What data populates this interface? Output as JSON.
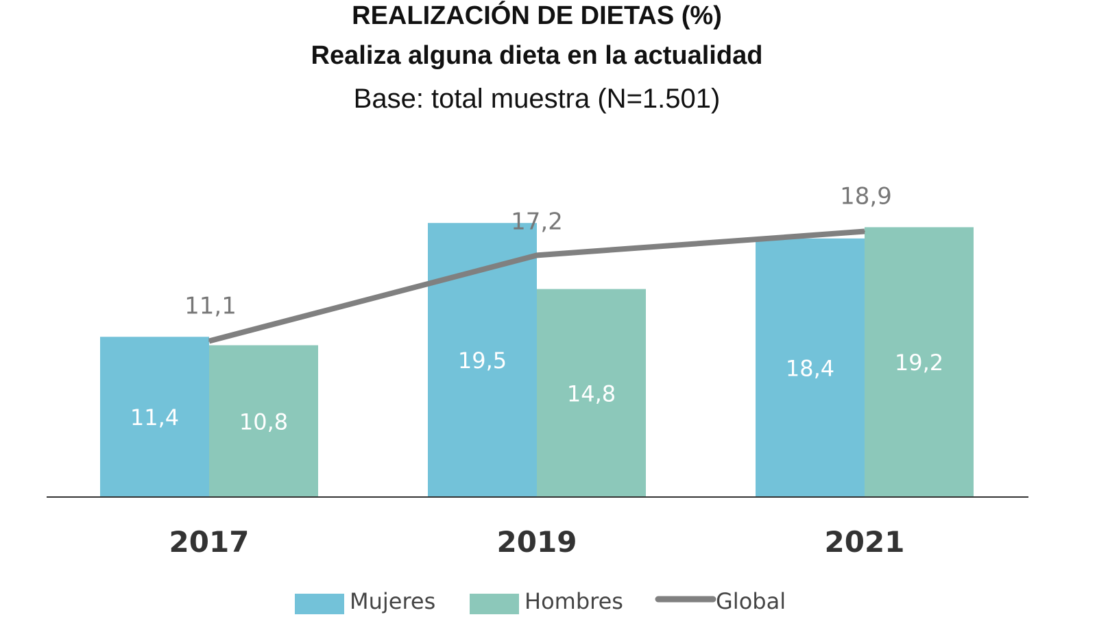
{
  "chart_data": {
    "type": "bar",
    "title": "REALIZACIÓN DE DIETAS (%)",
    "subtitle": "Realiza alguna dieta en la actualidad",
    "note": "Base: total muestra (N=1.501)",
    "categories": [
      "2017",
      "2019",
      "2021"
    ],
    "series": [
      {
        "name": "Mujeres",
        "type": "bar",
        "color": "#73c2d9",
        "values": [
          11.4,
          19.5,
          18.4
        ],
        "labels": [
          "11,4",
          "19,5",
          "18,4"
        ]
      },
      {
        "name": "Hombres",
        "type": "bar",
        "color": "#8cc8ba",
        "values": [
          10.8,
          14.8,
          19.2
        ],
        "labels": [
          "10,8",
          "14,8",
          "19,2"
        ]
      },
      {
        "name": "Global",
        "type": "line",
        "color": "#808080",
        "values": [
          11.1,
          17.2,
          18.9
        ],
        "labels": [
          "11,1",
          "17,2",
          "18,9"
        ]
      }
    ],
    "xlabel": "",
    "ylabel": "",
    "ylim": [
      0,
      35
    ],
    "grid": false,
    "legend_position": "bottom"
  }
}
